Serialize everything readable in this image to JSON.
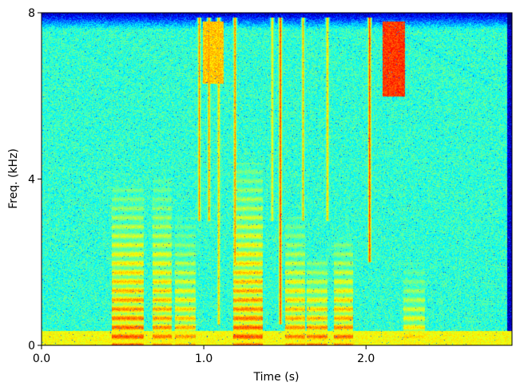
{
  "chart_data": {
    "type": "heatmap",
    "title": "",
    "xlabel": "Time (s)",
    "ylabel": "Freq. (kHz)",
    "xlim": [
      0.0,
      2.9
    ],
    "ylim": [
      0,
      8
    ],
    "x_ticks": [
      0.0,
      1.0,
      2.0
    ],
    "x_tick_labels": [
      "0.0",
      "1.0",
      "2.0"
    ],
    "y_ticks": [
      0,
      4,
      8
    ],
    "y_tick_labels": [
      "0",
      "4",
      "8"
    ],
    "colormap": "jet",
    "grid": false,
    "legend": "none",
    "background_level": 0.42,
    "formant_bursts": [
      {
        "t_start": 0.43,
        "t_end": 0.63,
        "f_low": 0.0,
        "f_high": 3.8,
        "intensity": 0.82
      },
      {
        "t_start": 0.68,
        "t_end": 0.8,
        "f_low": 0.0,
        "f_high": 4.1,
        "intensity": 0.78
      },
      {
        "t_start": 0.82,
        "t_end": 0.95,
        "f_low": 0.0,
        "f_high": 3.1,
        "intensity": 0.75
      },
      {
        "t_start": 1.18,
        "t_end": 1.36,
        "f_low": 0.0,
        "f_high": 4.4,
        "intensity": 0.82
      },
      {
        "t_start": 1.5,
        "t_end": 1.62,
        "f_low": 0.0,
        "f_high": 3.1,
        "intensity": 0.78
      },
      {
        "t_start": 1.63,
        "t_end": 1.76,
        "f_low": 0.0,
        "f_high": 2.1,
        "intensity": 0.8
      },
      {
        "t_start": 1.8,
        "t_end": 1.92,
        "f_low": 0.0,
        "f_high": 2.6,
        "intensity": 0.8
      },
      {
        "t_start": 2.23,
        "t_end": 2.36,
        "f_low": 0.0,
        "f_high": 2.0,
        "intensity": 0.7
      }
    ],
    "vertical_striations": [
      {
        "t": 0.97,
        "f_low": 3.0,
        "f_high": 7.9,
        "intensity": 0.75
      },
      {
        "t": 1.03,
        "f_low": 3.0,
        "f_high": 7.9,
        "intensity": 0.75
      },
      {
        "t": 1.09,
        "f_low": 0.5,
        "f_high": 7.9,
        "intensity": 0.72
      },
      {
        "t": 1.19,
        "f_low": 2.0,
        "f_high": 7.9,
        "intensity": 0.78
      },
      {
        "t": 1.42,
        "f_low": 3.0,
        "f_high": 7.9,
        "intensity": 0.68
      },
      {
        "t": 1.47,
        "f_low": 0.5,
        "f_high": 7.9,
        "intensity": 0.85
      },
      {
        "t": 1.61,
        "f_low": 3.0,
        "f_high": 7.9,
        "intensity": 0.7
      },
      {
        "t": 1.76,
        "f_low": 3.0,
        "f_high": 7.9,
        "intensity": 0.72
      },
      {
        "t": 2.02,
        "f_low": 2.0,
        "f_high": 7.9,
        "intensity": 0.85
      }
    ],
    "high_freq_patches": [
      {
        "t_start": 2.1,
        "t_end": 2.24,
        "f_low": 6.0,
        "f_high": 7.8,
        "intensity": 0.82
      },
      {
        "t_start": 0.99,
        "t_end": 1.12,
        "f_low": 6.3,
        "f_high": 7.8,
        "intensity": 0.68
      }
    ],
    "low_band": {
      "f_low": 0.0,
      "f_high": 0.35,
      "intensity": 0.62
    }
  }
}
